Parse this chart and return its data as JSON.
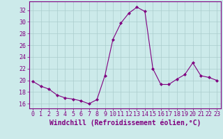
{
  "x": [
    0,
    1,
    2,
    3,
    4,
    5,
    6,
    7,
    8,
    9,
    10,
    11,
    12,
    13,
    14,
    15,
    16,
    17,
    18,
    19,
    20,
    21,
    22,
    23
  ],
  "y": [
    19.8,
    19.0,
    18.5,
    17.5,
    17.0,
    16.8,
    16.5,
    16.0,
    16.7,
    20.8,
    27.0,
    29.8,
    31.5,
    32.5,
    31.8,
    22.0,
    19.3,
    19.3,
    20.2,
    21.0,
    23.0,
    20.8,
    20.5,
    20.0
  ],
  "line_color": "#800080",
  "marker": "D",
  "marker_size": 2,
  "bg_color": "#cceaea",
  "grid_color": "#aacccc",
  "xlabel": "Windchill (Refroidissement éolien,°C)",
  "xlabel_color": "#800080",
  "tick_color": "#800080",
  "spine_color": "#800080",
  "yticks": [
    16,
    18,
    20,
    22,
    24,
    26,
    28,
    30,
    32
  ],
  "xticks": [
    0,
    1,
    2,
    3,
    4,
    5,
    6,
    7,
    8,
    9,
    10,
    11,
    12,
    13,
    14,
    15,
    16,
    17,
    18,
    19,
    20,
    21,
    22,
    23
  ],
  "ylim": [
    15.2,
    33.5
  ],
  "xlim": [
    -0.5,
    23.5
  ],
  "tick_fontsize": 6,
  "xlabel_fontsize": 7
}
